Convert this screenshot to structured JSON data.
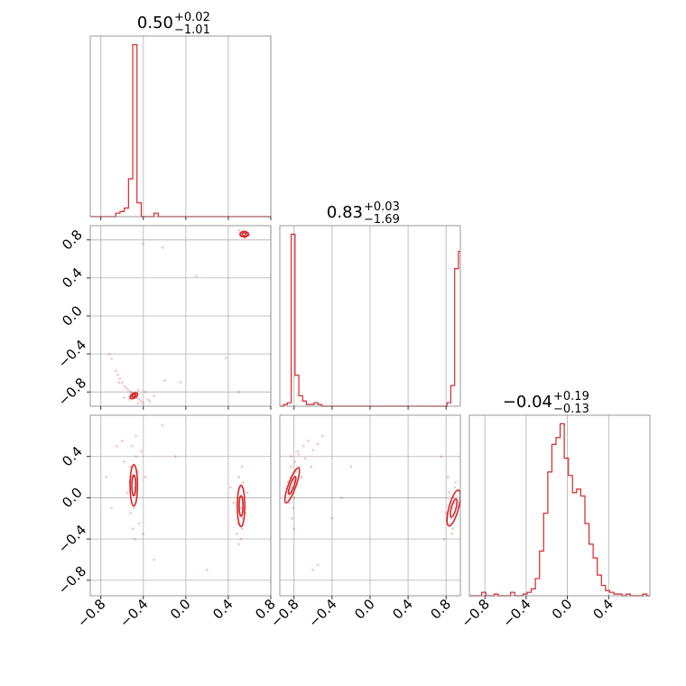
{
  "colors": {
    "series": "#d62728",
    "grid": "#b0b0b0",
    "axes": "#7f7f7f",
    "text": "#000000"
  },
  "chart_data": {
    "type": "corner",
    "grid": true,
    "params": [
      {
        "title_value": "0.50",
        "title_plus": "+0.02",
        "title_minus": "−1.01",
        "range": [
          -0.9,
          0.8
        ],
        "ticks": [
          -0.8,
          -0.4,
          0.0,
          0.4,
          0.8
        ],
        "tick_labels": [
          "−0.8",
          "−0.4",
          "0.0",
          "0.4",
          "0.8"
        ],
        "hist_x": [
          -0.9,
          -0.86,
          -0.82,
          -0.78,
          -0.74,
          -0.7,
          -0.66,
          -0.62,
          -0.58,
          -0.54,
          -0.5,
          -0.46,
          -0.42,
          -0.38,
          -0.34,
          -0.3,
          -0.26,
          -0.22,
          -0.18,
          -0.14,
          -0.1,
          -0.06,
          -0.02,
          0.02,
          0.06,
          0.1,
          0.14,
          0.18,
          0.22,
          0.26,
          0.3,
          0.34,
          0.38,
          0.42,
          0.46,
          0.5,
          0.54,
          0.58,
          0.62,
          0.66,
          0.7,
          0.74,
          0.78
        ],
        "hist_y": [
          0,
          0,
          0,
          0,
          0,
          0,
          2,
          3,
          5,
          22,
          100,
          8,
          0,
          0,
          0,
          2,
          0,
          0,
          0,
          0,
          0,
          0,
          0,
          0,
          0,
          0,
          0,
          0,
          0,
          0,
          0,
          0,
          0,
          0,
          0,
          0,
          0,
          0,
          0,
          0,
          0,
          0,
          0
        ]
      },
      {
        "title_value": "0.83",
        "title_plus": "+0.03",
        "title_minus": "−1.69",
        "range": [
          -0.95,
          0.95
        ],
        "ticks": [
          -0.8,
          -0.4,
          0.0,
          0.4,
          0.8
        ],
        "tick_labels": [
          "−0.8",
          "−0.4",
          "0.0",
          "0.4",
          "0.8"
        ],
        "hist_x": [
          -0.95,
          -0.91,
          -0.87,
          -0.83,
          -0.79,
          -0.75,
          -0.71,
          -0.67,
          -0.63,
          -0.59,
          -0.55,
          -0.51,
          -0.47,
          -0.43,
          -0.39,
          -0.35,
          -0.31,
          -0.27,
          -0.23,
          -0.19,
          -0.15,
          -0.11,
          -0.07,
          -0.03,
          0.01,
          0.05,
          0.09,
          0.13,
          0.17,
          0.21,
          0.25,
          0.29,
          0.33,
          0.37,
          0.41,
          0.45,
          0.49,
          0.53,
          0.57,
          0.61,
          0.65,
          0.69,
          0.73,
          0.77,
          0.81,
          0.85,
          0.89,
          0.93
        ],
        "hist_y": [
          0,
          1,
          2,
          100,
          18,
          6,
          3,
          1,
          1,
          2,
          1,
          0,
          0,
          0,
          0,
          0,
          0,
          0,
          0,
          0,
          0,
          0,
          0,
          0,
          0,
          0,
          0,
          0,
          0,
          0,
          0,
          0,
          0,
          0,
          0,
          0,
          0,
          0,
          0,
          0,
          0,
          0,
          0,
          0,
          2,
          12,
          80,
          90
        ]
      },
      {
        "title_value": "−0.04",
        "title_plus": "+0.19",
        "title_minus": "−0.13",
        "range": [
          -0.95,
          0.8
        ],
        "ticks": [
          -0.8,
          -0.4,
          0.0,
          0.4
        ],
        "tick_labels": [
          "−0.8",
          "−0.4",
          "0.0",
          "0.4"
        ],
        "hist_x": [
          -0.95,
          -0.91,
          -0.87,
          -0.83,
          -0.79,
          -0.75,
          -0.71,
          -0.67,
          -0.63,
          -0.59,
          -0.55,
          -0.51,
          -0.47,
          -0.43,
          -0.39,
          -0.35,
          -0.31,
          -0.27,
          -0.23,
          -0.19,
          -0.15,
          -0.11,
          -0.07,
          -0.03,
          0.01,
          0.05,
          0.09,
          0.13,
          0.17,
          0.21,
          0.25,
          0.29,
          0.33,
          0.37,
          0.41,
          0.45,
          0.49,
          0.53,
          0.57,
          0.61,
          0.65,
          0.69,
          0.73,
          0.77
        ],
        "hist_y": [
          0,
          0,
          0,
          2,
          0,
          0,
          1,
          0,
          0,
          0,
          2,
          0,
          0,
          1,
          2,
          4,
          10,
          26,
          48,
          72,
          88,
          92,
          100,
          80,
          70,
          60,
          62,
          58,
          42,
          30,
          22,
          12,
          6,
          3,
          2,
          1,
          1,
          0,
          1,
          0,
          0,
          0,
          1,
          0
        ]
      }
    ],
    "pairs": [
      {
        "row": 1,
        "col": 0,
        "points": [
          [
            -0.48,
            -0.82
          ],
          [
            -0.5,
            -0.84
          ],
          [
            -0.46,
            -0.86
          ],
          [
            -0.52,
            -0.8
          ],
          [
            -0.44,
            -0.88
          ],
          [
            -0.56,
            -0.76
          ],
          [
            -0.6,
            -0.7
          ],
          [
            -0.64,
            -0.62
          ],
          [
            -0.58,
            -0.74
          ],
          [
            -0.42,
            -0.9
          ],
          [
            -0.4,
            -0.92
          ],
          [
            -0.54,
            -0.78
          ],
          [
            -0.49,
            -0.85
          ],
          [
            -0.47,
            -0.83
          ],
          [
            -0.51,
            -0.81
          ],
          [
            -0.7,
            -0.45
          ],
          [
            -0.72,
            -0.4
          ],
          [
            -0.66,
            -0.58
          ],
          [
            -0.62,
            -0.66
          ],
          [
            -0.45,
            -0.78
          ],
          [
            -0.38,
            -0.8
          ],
          [
            -0.36,
            -0.88
          ],
          [
            -0.3,
            -0.84
          ],
          [
            -0.2,
            -0.68
          ],
          [
            -0.05,
            -0.7
          ],
          [
            -0.4,
            0.76
          ],
          [
            -0.22,
            0.72
          ],
          [
            0.52,
            0.86
          ],
          [
            0.55,
            0.84
          ],
          [
            0.58,
            0.86
          ],
          [
            0.54,
            0.88
          ],
          [
            0.56,
            0.82
          ],
          [
            0.5,
            0.9
          ],
          [
            0.6,
            0.85
          ],
          [
            0.53,
            0.84
          ],
          [
            0.57,
            0.87
          ],
          [
            0.5,
            -0.8
          ],
          [
            0.38,
            -0.44
          ],
          [
            0.1,
            0.42
          ],
          [
            -0.63,
            -0.7
          ],
          [
            -0.58,
            -0.86
          ],
          [
            -0.53,
            -0.88
          ],
          [
            -0.45,
            -0.92
          ],
          [
            -0.34,
            -0.9
          ]
        ],
        "contours": [
          {
            "cx": -0.49,
            "cy": -0.84,
            "rx": 0.04,
            "ry": 0.025,
            "rot": -30
          },
          {
            "cx": -0.49,
            "cy": -0.84,
            "rx": 0.02,
            "ry": 0.012,
            "rot": -30
          },
          {
            "cx": 0.55,
            "cy": 0.86,
            "rx": 0.04,
            "ry": 0.03,
            "rot": 0
          },
          {
            "cx": 0.55,
            "cy": 0.86,
            "rx": 0.02,
            "ry": 0.015,
            "rot": 0
          }
        ]
      },
      {
        "row": 2,
        "col": 0,
        "points": [
          [
            -0.48,
            0.1
          ],
          [
            -0.5,
            0.2
          ],
          [
            -0.46,
            0.0
          ],
          [
            -0.52,
            0.3
          ],
          [
            -0.49,
            -0.1
          ],
          [
            -0.47,
            0.4
          ],
          [
            -0.51,
            0.5
          ],
          [
            -0.53,
            0.15
          ],
          [
            -0.45,
            0.25
          ],
          [
            -0.55,
            0.05
          ],
          [
            -0.6,
            0.55
          ],
          [
            -0.44,
            -0.25
          ],
          [
            -0.5,
            -0.3
          ],
          [
            -0.48,
            -0.4
          ],
          [
            -0.58,
            0.35
          ],
          [
            -0.42,
            0.45
          ],
          [
            -0.65,
            0.5
          ],
          [
            -0.4,
            -0.35
          ],
          [
            -0.47,
            0.6
          ],
          [
            -0.52,
            -0.15
          ],
          [
            -0.3,
            -0.6
          ],
          [
            -0.38,
            0.2
          ],
          [
            -0.22,
            0.7
          ],
          [
            0.2,
            -0.7
          ],
          [
            -0.75,
            0.2
          ],
          [
            -0.7,
            -0.1
          ],
          [
            0.52,
            -0.1
          ],
          [
            0.5,
            0.0
          ],
          [
            0.54,
            -0.2
          ],
          [
            0.51,
            0.1
          ],
          [
            0.53,
            -0.3
          ],
          [
            0.5,
            0.2
          ],
          [
            0.52,
            -0.4
          ],
          [
            0.55,
            0.0
          ],
          [
            0.49,
            -0.25
          ],
          [
            0.54,
            0.15
          ],
          [
            0.56,
            -0.15
          ],
          [
            0.5,
            -0.45
          ],
          [
            0.53,
            0.3
          ],
          [
            0.48,
            -0.35
          ],
          [
            0.45,
            -0.05
          ],
          [
            0.58,
            0.05
          ],
          [
            0.42,
            0.1
          ],
          [
            -0.1,
            0.4
          ]
        ],
        "contours": [
          {
            "cx": -0.49,
            "cy": 0.12,
            "rx": 0.035,
            "ry": 0.2,
            "rot": 0
          },
          {
            "cx": -0.49,
            "cy": 0.12,
            "rx": 0.018,
            "ry": 0.1,
            "rot": 0
          },
          {
            "cx": 0.52,
            "cy": -0.08,
            "rx": 0.035,
            "ry": 0.2,
            "rot": 0
          },
          {
            "cx": 0.52,
            "cy": -0.08,
            "rx": 0.018,
            "ry": 0.1,
            "rot": 0
          }
        ]
      },
      {
        "row": 2,
        "col": 1,
        "points": [
          [
            -0.82,
            0.1
          ],
          [
            -0.84,
            0.2
          ],
          [
            -0.8,
            0.0
          ],
          [
            -0.83,
            0.3
          ],
          [
            -0.81,
            -0.1
          ],
          [
            -0.79,
            0.35
          ],
          [
            -0.75,
            0.42
          ],
          [
            -0.7,
            0.5
          ],
          [
            -0.65,
            0.55
          ],
          [
            -0.78,
            0.25
          ],
          [
            -0.85,
            -0.05
          ],
          [
            -0.82,
            -0.2
          ],
          [
            -0.8,
            -0.3
          ],
          [
            -0.74,
            0.3
          ],
          [
            -0.68,
            0.38
          ],
          [
            -0.6,
            0.46
          ],
          [
            -0.55,
            0.52
          ],
          [
            -0.76,
            0.45
          ],
          [
            -0.83,
            0.4
          ],
          [
            -0.86,
            0.15
          ],
          [
            -0.72,
            0.2
          ],
          [
            -0.5,
            0.6
          ],
          [
            -0.62,
            0.3
          ],
          [
            -0.4,
            -0.2
          ],
          [
            -0.3,
            0.0
          ],
          [
            -0.2,
            0.3
          ],
          [
            -0.6,
            -0.7
          ],
          [
            -0.55,
            -0.65
          ],
          [
            0.86,
            -0.1
          ],
          [
            0.88,
            0.0
          ],
          [
            0.85,
            -0.2
          ],
          [
            0.89,
            0.1
          ],
          [
            0.84,
            -0.25
          ],
          [
            0.87,
            -0.3
          ],
          [
            0.9,
            0.15
          ],
          [
            0.83,
            0.05
          ],
          [
            0.86,
            -0.35
          ],
          [
            0.82,
            0.2
          ],
          [
            0.88,
            -0.05
          ],
          [
            0.8,
            -0.15
          ],
          [
            0.75,
            0.4
          ],
          [
            0.78,
            -0.4
          ]
        ],
        "contours": [
          {
            "cx": -0.82,
            "cy": 0.12,
            "rx": 0.04,
            "ry": 0.18,
            "rot": 20
          },
          {
            "cx": -0.82,
            "cy": 0.12,
            "rx": 0.02,
            "ry": 0.09,
            "rot": 20
          },
          {
            "cx": 0.88,
            "cy": -0.1,
            "rx": 0.05,
            "ry": 0.18,
            "rot": 15
          },
          {
            "cx": 0.88,
            "cy": -0.1,
            "rx": 0.025,
            "ry": 0.09,
            "rot": 15
          }
        ]
      }
    ]
  }
}
